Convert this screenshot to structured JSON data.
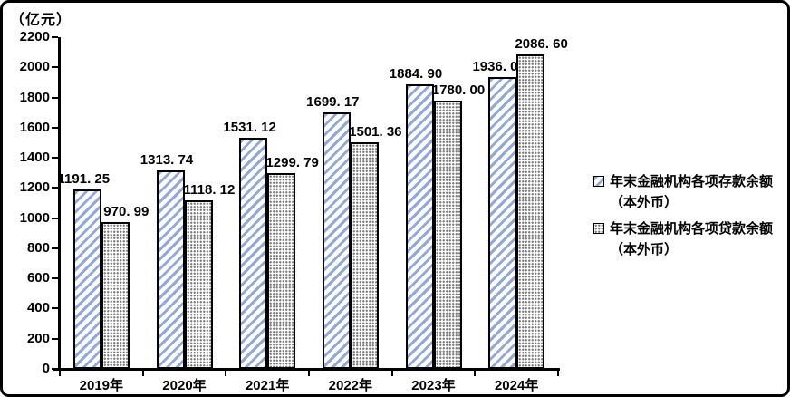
{
  "unit_label": "（亿元）",
  "chart_data": {
    "type": "bar",
    "title": "",
    "ylabel_unit": "（亿元）",
    "categories": [
      "2019年",
      "2020年",
      "2021年",
      "2022年",
      "2023年",
      "2024年"
    ],
    "series": [
      {
        "name": "年末金融机构各项存款余额（本外币）",
        "pattern": "diagonal-stripes",
        "color": "#92A9D8",
        "values": [
          1191.25,
          1313.74,
          1531.12,
          1699.17,
          1884.9,
          1936.0
        ],
        "labels": [
          "1191. 25",
          "1313. 74",
          "1531. 12",
          "1699. 17",
          "1884. 90",
          "1936. 00"
        ]
      },
      {
        "name": "年末金融机构各项贷款余额（本外币）",
        "pattern": "dots",
        "color": "#7D7D7D",
        "values": [
          970.99,
          1118.12,
          1299.79,
          1501.36,
          1780.0,
          2086.6
        ],
        "labels": [
          "970. 99",
          "1118. 12",
          "1299. 79",
          "1501. 36",
          "1780. 00",
          "2086. 60"
        ]
      }
    ],
    "ylim": [
      0,
      2200
    ],
    "ytick_step": 200,
    "ytick_labels": [
      "2200",
      "2000",
      "1800",
      "1600",
      "1400",
      "1200",
      "1000",
      "800",
      "600",
      "400",
      "200",
      "0"
    ],
    "grid": false,
    "legend_position": "right"
  },
  "legend": {
    "entries": [
      {
        "line1": "年末金融机构各项存款余额",
        "line2": "（本外币）",
        "pattern": "diagonal-stripes"
      },
      {
        "line1": "年末金融机构各项贷款余额",
        "line2": "（本外币）",
        "pattern": "dots"
      }
    ]
  },
  "colors": {
    "stripe_blue": "#92A9D8",
    "dot_gray": "#7D7D7D",
    "axis": "#000000",
    "frame_border": "#000000",
    "background": "#FFFFFF"
  }
}
